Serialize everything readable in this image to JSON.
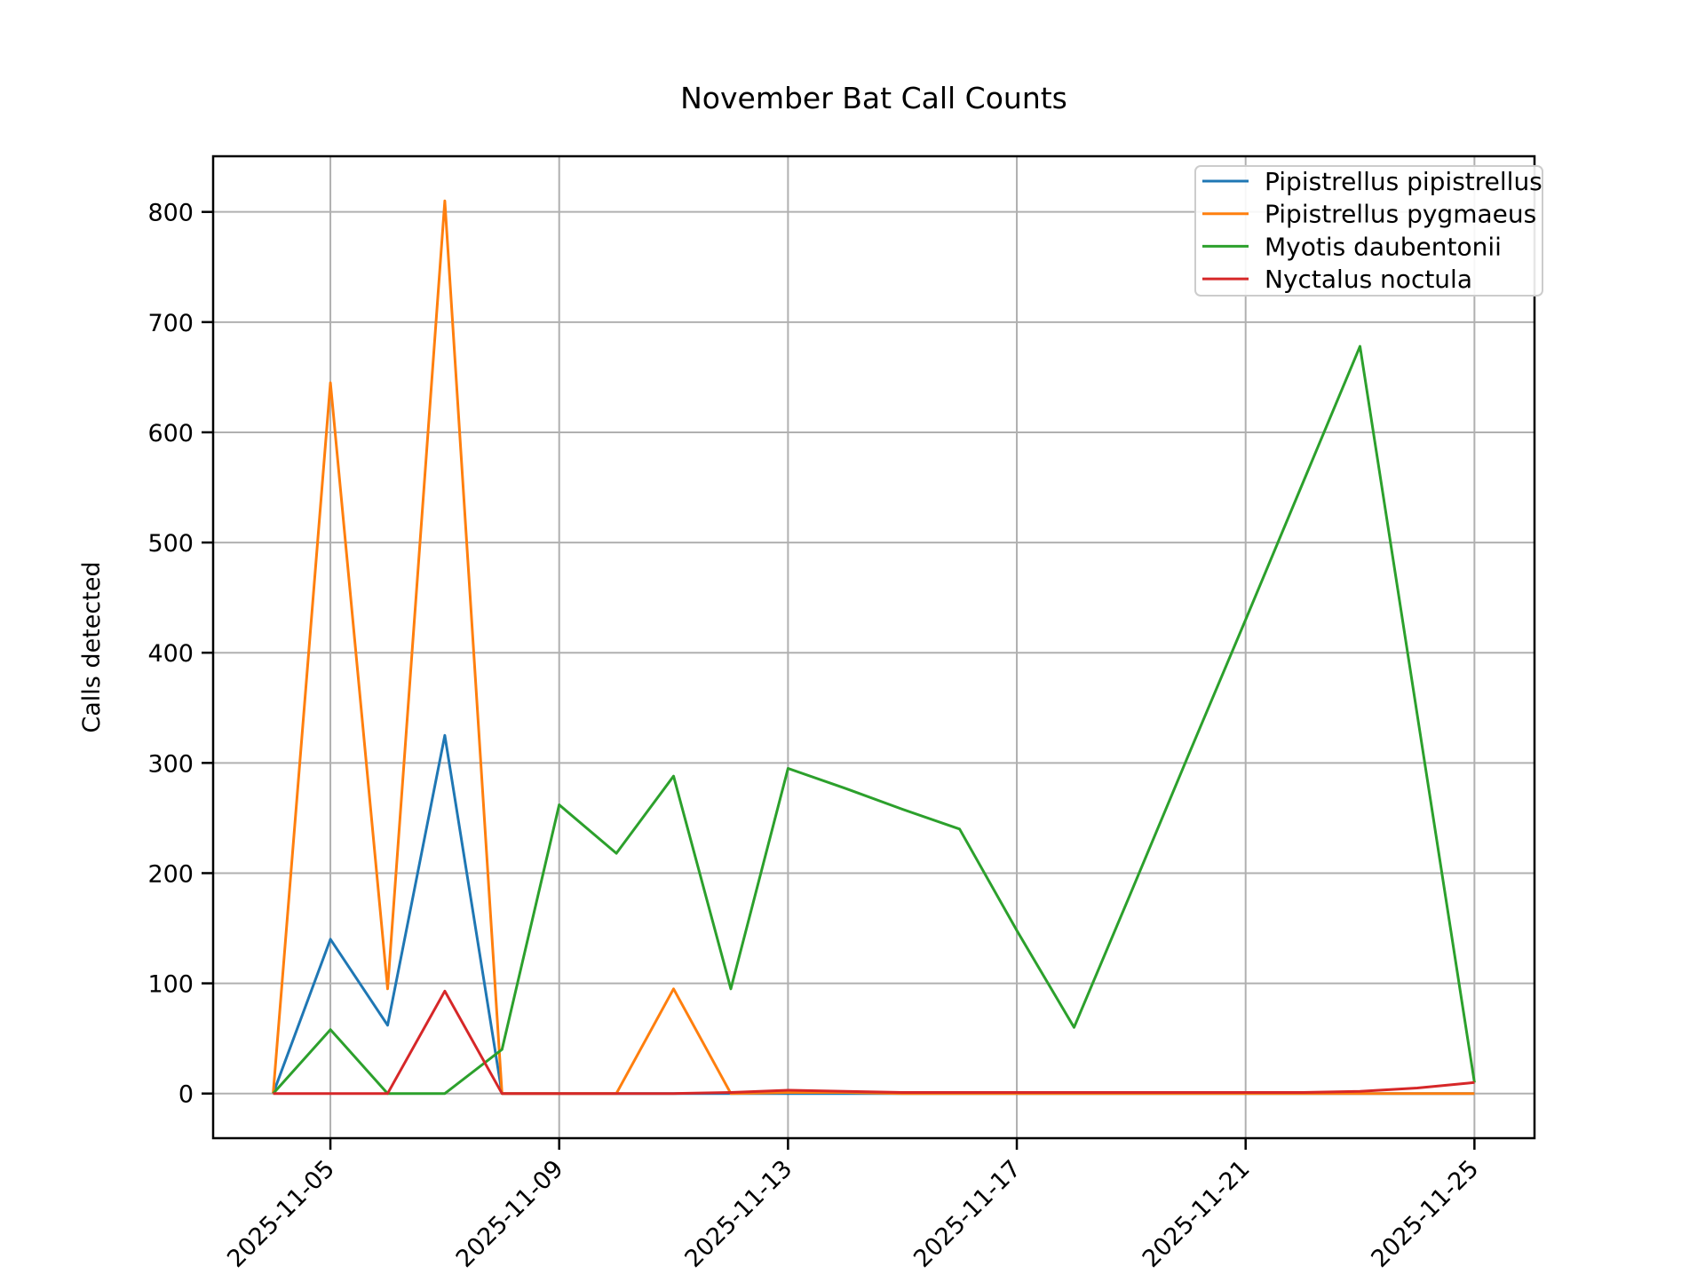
{
  "title": "November Bat Call Counts",
  "ylabel": "Calls detected",
  "xlabel": "",
  "chart_data": {
    "type": "line",
    "x": [
      "2025-11-04",
      "2025-11-05",
      "2025-11-06",
      "2025-11-07",
      "2025-11-08",
      "2025-11-09",
      "2025-11-10",
      "2025-11-11",
      "2025-11-12",
      "2025-11-13",
      "2025-11-14",
      "2025-11-15",
      "2025-11-16",
      "2025-11-17",
      "2025-11-18",
      "2025-11-19",
      "2025-11-20",
      "2025-11-21",
      "2025-11-22",
      "2025-11-23",
      "2025-11-24",
      "2025-11-25"
    ],
    "series": [
      {
        "name": "Pipistrellus pipistrellus",
        "color": "#1f77b4",
        "values": [
          0,
          140,
          62,
          325,
          0,
          0,
          0,
          0,
          0,
          0,
          0,
          0,
          0,
          0,
          0,
          0,
          0,
          0,
          0,
          0,
          0,
          0
        ]
      },
      {
        "name": "Pipistrellus pygmaeus",
        "color": "#ff7f0e",
        "values": [
          0,
          645,
          95,
          810,
          0,
          0,
          0,
          95,
          0,
          1,
          1,
          0,
          0,
          0,
          0,
          0,
          0,
          0,
          0,
          0,
          0,
          0
        ]
      },
      {
        "name": "Myotis daubentonii",
        "color": "#2ca02c",
        "values": [
          0,
          58,
          0,
          0,
          40,
          262,
          218,
          288,
          95,
          295,
          277,
          258,
          240,
          148,
          60,
          183,
          307,
          430,
          554,
          678,
          344,
          10
        ]
      },
      {
        "name": "Nyctalus noctula",
        "color": "#d62728",
        "values": [
          0,
          0,
          0,
          93,
          0,
          0,
          0,
          0,
          1,
          3,
          2,
          1,
          1,
          1,
          1,
          1,
          1,
          1,
          1,
          2,
          5,
          10
        ]
      }
    ],
    "x_tick_labels": [
      "2025-11-05",
      "2025-11-09",
      "2025-11-13",
      "2025-11-17",
      "2025-11-21",
      "2025-11-25"
    ],
    "y_ticks": [
      0,
      100,
      200,
      300,
      400,
      500,
      600,
      700,
      800
    ],
    "ylim": [
      -40,
      850
    ],
    "grid": true,
    "legend_position": "upper right"
  },
  "colors": {
    "grid": "#b0b0b0",
    "spine": "#000000",
    "background": "#ffffff",
    "legend_border": "#cccccc"
  }
}
